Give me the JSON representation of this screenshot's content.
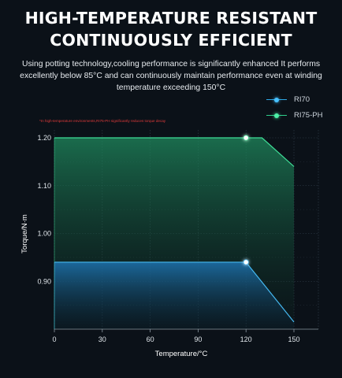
{
  "header": {
    "title_line1": "HIGH-TEMPERATURE RESISTANT",
    "title_line2": "CONTINUOUSLY EFFICIENT",
    "description_line1": "Using potting technology,cooling performance is significantly enhanced It performs",
    "description_line2": "excellently below 85°C and can continuously maintain performance even at winding",
    "description_line3": "temperature exceeding 150°C"
  },
  "note": "*In high-temperature environments,RI75-PH significantly reduces torque decay",
  "colors": {
    "ri70": "#45b8f0",
    "ri75": "#3fdc96",
    "background": "#0b1118"
  },
  "chart_data": {
    "type": "area",
    "xlabel": "Temperature/°C",
    "ylabel": "Torque/N·m",
    "xlim": [
      0,
      150
    ],
    "ylim": [
      0.8,
      1.2
    ],
    "x_ticks": [
      0,
      30,
      60,
      90,
      120,
      150
    ],
    "x_tick_labels": [
      "0",
      "30",
      "60",
      "90",
      "120",
      "150"
    ],
    "y_ticks": [
      0.9,
      1.0,
      1.1,
      1.2
    ],
    "y_tick_labels": [
      "0.90",
      "1.00",
      "1.10",
      "1.20"
    ],
    "grid": true,
    "legend_position": "top-right",
    "series": [
      {
        "name": "RI70",
        "color": "#45b8f0",
        "points": [
          [
            0,
            0.94
          ],
          [
            120,
            0.94
          ],
          [
            150,
            0.815
          ]
        ],
        "marker": [
          120,
          0.94
        ]
      },
      {
        "name": "RI75-PH",
        "color": "#3fdc96",
        "points": [
          [
            0,
            1.2
          ],
          [
            130,
            1.2
          ],
          [
            150,
            1.14
          ]
        ],
        "marker": [
          120,
          1.2
        ]
      }
    ]
  }
}
